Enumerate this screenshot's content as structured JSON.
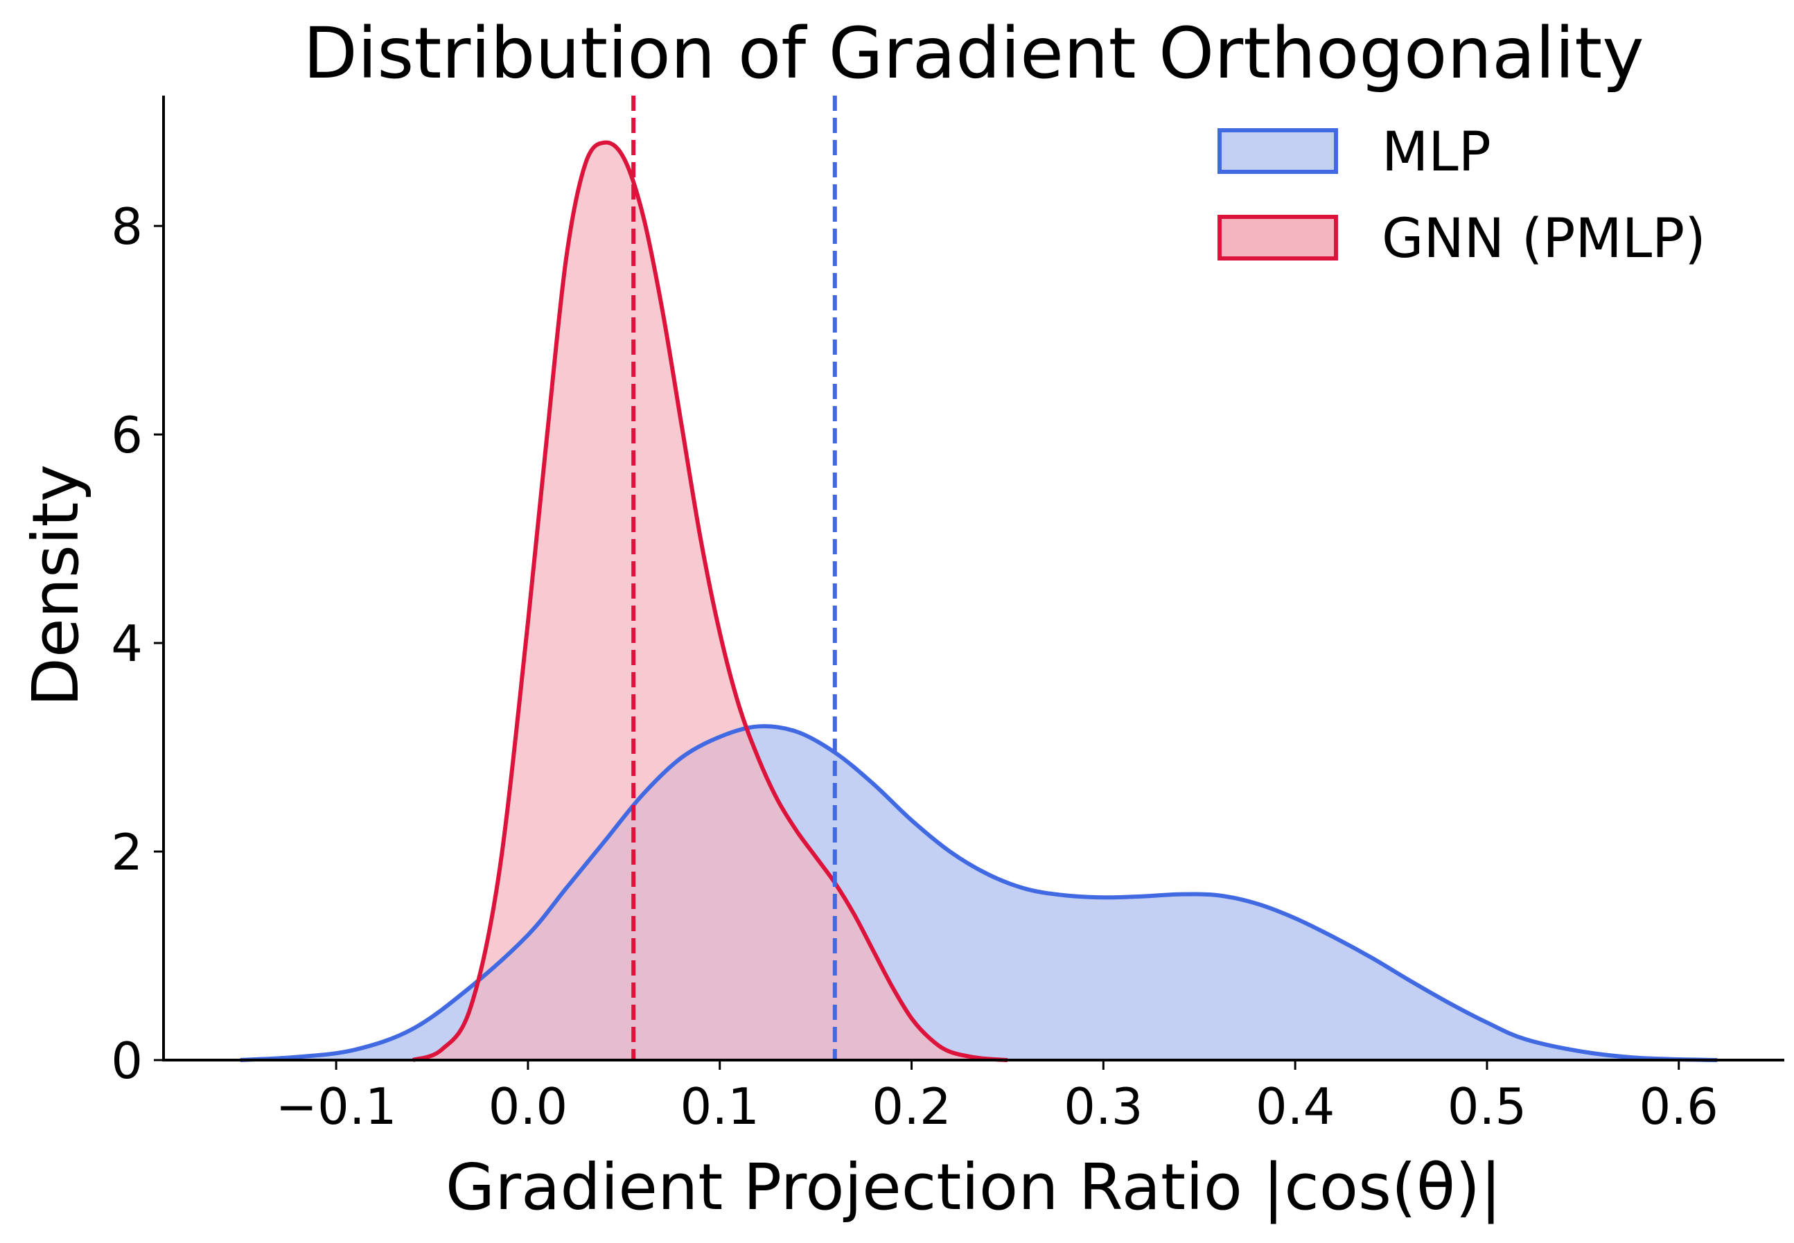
{
  "chart_data": {
    "type": "area",
    "title": "Distribution of Gradient Orthogonality",
    "xlabel": "Gradient Projection Ratio |cos(θ)|",
    "ylabel": "Density",
    "xlim": [
      -0.19,
      0.655
    ],
    "ylim": [
      0,
      9.25
    ],
    "xticks": [
      -0.1,
      0.0,
      0.1,
      0.2,
      0.3,
      0.4,
      0.5,
      0.6
    ],
    "xtick_labels": [
      "−0.1",
      "0.0",
      "0.1",
      "0.2",
      "0.3",
      "0.4",
      "0.5",
      "0.6"
    ],
    "yticks": [
      0,
      2,
      4,
      6,
      8
    ],
    "ytick_labels": [
      "0",
      "2",
      "4",
      "6",
      "8"
    ],
    "legend_position": "top-right",
    "series": [
      {
        "name": "MLP",
        "line_color": "#4169E1",
        "fill_color": "#C3D0F4",
        "mean_line": 0.16,
        "x": [
          -0.15,
          -0.12,
          -0.09,
          -0.06,
          -0.03,
          0.0,
          0.02,
          0.04,
          0.06,
          0.08,
          0.1,
          0.12,
          0.14,
          0.16,
          0.18,
          0.2,
          0.22,
          0.24,
          0.26,
          0.28,
          0.3,
          0.32,
          0.34,
          0.36,
          0.38,
          0.4,
          0.42,
          0.44,
          0.46,
          0.48,
          0.5,
          0.52,
          0.55,
          0.58,
          0.62
        ],
        "y": [
          0.0,
          0.03,
          0.1,
          0.3,
          0.7,
          1.2,
          1.65,
          2.1,
          2.55,
          2.9,
          3.1,
          3.2,
          3.15,
          2.95,
          2.65,
          2.3,
          2.0,
          1.78,
          1.64,
          1.58,
          1.56,
          1.57,
          1.59,
          1.58,
          1.5,
          1.36,
          1.18,
          0.98,
          0.76,
          0.55,
          0.36,
          0.2,
          0.08,
          0.02,
          0.0
        ]
      },
      {
        "name": "GNN (PMLP)",
        "line_color": "#DC143C",
        "fill_color": "#F4B5C1",
        "mean_line": 0.055,
        "x": [
          -0.06,
          -0.045,
          -0.03,
          -0.015,
          0.0,
          0.01,
          0.02,
          0.03,
          0.04,
          0.05,
          0.06,
          0.07,
          0.08,
          0.09,
          0.1,
          0.11,
          0.12,
          0.13,
          0.14,
          0.15,
          0.16,
          0.17,
          0.18,
          0.19,
          0.2,
          0.21,
          0.22,
          0.235,
          0.25
        ],
        "y": [
          0.0,
          0.1,
          0.5,
          1.8,
          4.2,
          6.0,
          7.7,
          8.6,
          8.8,
          8.65,
          8.1,
          7.2,
          6.1,
          5.0,
          4.1,
          3.4,
          2.9,
          2.5,
          2.2,
          1.95,
          1.7,
          1.4,
          1.05,
          0.7,
          0.4,
          0.2,
          0.08,
          0.02,
          0.0
        ]
      }
    ]
  }
}
